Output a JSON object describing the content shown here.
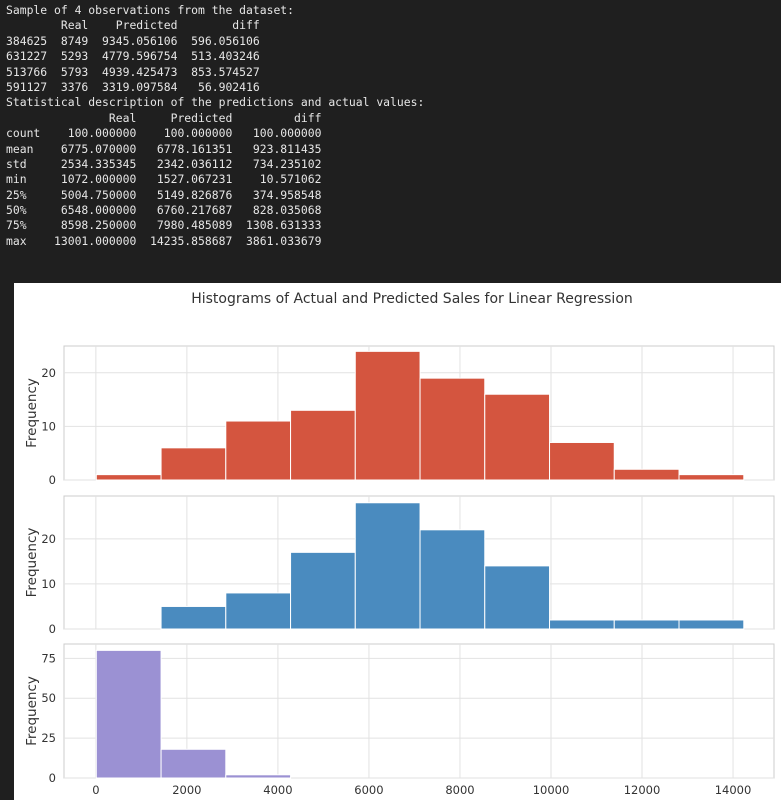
{
  "console": {
    "lines": [
      "Sample of 4 observations from the dataset:",
      "        Real    Predicted        diff",
      "384625  8749  9345.056106  596.056106",
      "631227  5293  4779.596754  513.403246",
      "513766  5793  4939.425473  853.574527",
      "591127  3376  3319.097584   56.902416",
      "Statistical description of the predictions and actual values:",
      "               Real     Predicted         diff",
      "count    100.000000    100.000000   100.000000",
      "mean    6775.070000   6778.161351   923.811435",
      "std     2534.335345   2342.036112   734.235102",
      "min     1072.000000   1527.067231    10.571062",
      "25%     5004.750000   5149.826876   374.958548",
      "50%     6548.000000   6760.217687   828.035068",
      "75%     8598.250000   7980.485089  1308.631333",
      "max    13001.000000  14235.858687  3861.033679"
    ]
  },
  "chart_data": {
    "type": "bar",
    "title": "Histograms of Actual and Predicted Sales for Linear Regression",
    "x_ticks": [
      0,
      2000,
      4000,
      6000,
      8000,
      10000,
      12000,
      14000
    ],
    "xlim": [
      -700,
      14900
    ],
    "bin_edges": [
      10,
      1433,
      2855,
      4278,
      5700,
      7123,
      8545,
      9968,
      11390,
      12813,
      14236
    ],
    "grid": true,
    "panels": [
      {
        "ylabel": "Frequency",
        "color": "#d4553f",
        "ylim": [
          0,
          25
        ],
        "y_ticks": [
          0,
          10,
          20
        ],
        "values": [
          1,
          6,
          11,
          13,
          24,
          19,
          16,
          7,
          2,
          1
        ]
      },
      {
        "ylabel": "Frequency",
        "color": "#4a8bbf",
        "ylim": [
          0,
          29.5
        ],
        "y_ticks": [
          0,
          10,
          20
        ],
        "values": [
          0,
          5,
          8,
          17,
          28,
          22,
          14,
          2,
          2,
          2
        ]
      },
      {
        "ylabel": "Frequency",
        "color": "#9b91d3",
        "ylim": [
          0,
          84
        ],
        "y_ticks": [
          0,
          25,
          50,
          75
        ],
        "values": [
          80,
          18,
          2,
          0,
          0,
          0,
          0,
          0,
          0,
          0
        ]
      }
    ]
  }
}
